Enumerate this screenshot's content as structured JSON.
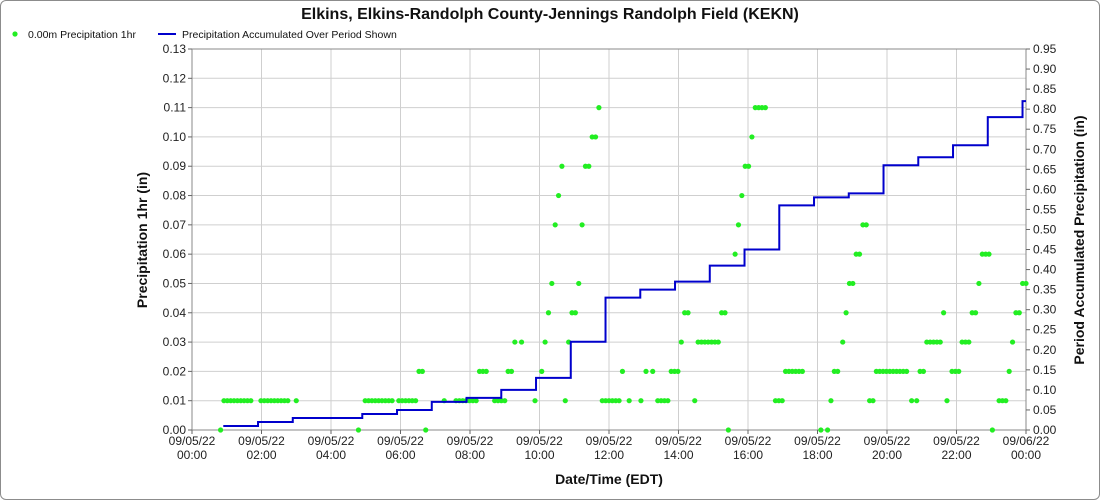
{
  "chart_data": {
    "type": "scatter",
    "title": "Elkins, Elkins-Randolph County-Jennings Randolph Field (KEKN)",
    "xlabel": "Date/Time (EDT)",
    "ylabel_left": "Precipitation 1hr (in)",
    "ylabel_right": "Period Accumulated Precipitation (in)",
    "xlim": [
      "09/05/22 00:00",
      "09/06/22 00:00"
    ],
    "ylim_left": [
      0,
      0.13
    ],
    "ylim_right": [
      0,
      0.95
    ],
    "grid": true,
    "legend_placement": "top-left",
    "x_ticks": [
      {
        "date": "09/05/22",
        "time": "00:00"
      },
      {
        "date": "09/05/22",
        "time": "02:00"
      },
      {
        "date": "09/05/22",
        "time": "04:00"
      },
      {
        "date": "09/05/22",
        "time": "06:00"
      },
      {
        "date": "09/05/22",
        "time": "08:00"
      },
      {
        "date": "09/05/22",
        "time": "10:00"
      },
      {
        "date": "09/05/22",
        "time": "12:00"
      },
      {
        "date": "09/05/22",
        "time": "14:00"
      },
      {
        "date": "09/05/22",
        "time": "16:00"
      },
      {
        "date": "09/05/22",
        "time": "18:00"
      },
      {
        "date": "09/05/22",
        "time": "20:00"
      },
      {
        "date": "09/05/22",
        "time": "22:00"
      },
      {
        "date": "09/06/22",
        "time": "00:00"
      }
    ],
    "y_ticks_left": [
      "0.00",
      "0.01",
      "0.02",
      "0.03",
      "0.04",
      "0.05",
      "0.06",
      "0.07",
      "0.08",
      "0.09",
      "0.10",
      "0.11",
      "0.12",
      "0.13"
    ],
    "y_ticks_right": [
      "0.00",
      "0.05",
      "0.10",
      "0.15",
      "0.20",
      "0.25",
      "0.30",
      "0.35",
      "0.40",
      "0.45",
      "0.50",
      "0.55",
      "0.60",
      "0.65",
      "0.70",
      "0.75",
      "0.80",
      "0.85",
      "0.90",
      "0.95"
    ],
    "series": [
      {
        "name": "0.00m Precipitation 1hr",
        "kind": "scatter",
        "color": "#22ee22",
        "axis": "left",
        "x_unit": "hours since 09/05/22 00:00",
        "points": [
          [
            0.85,
            0.0
          ],
          [
            0.95,
            0.01
          ],
          [
            1.05,
            0.01
          ],
          [
            1.15,
            0.01
          ],
          [
            1.25,
            0.01
          ],
          [
            1.35,
            0.01
          ],
          [
            1.45,
            0.01
          ],
          [
            1.55,
            0.01
          ],
          [
            1.65,
            0.01
          ],
          [
            1.75,
            0.01
          ],
          [
            2.05,
            0.01
          ],
          [
            2.15,
            0.01
          ],
          [
            2.25,
            0.01
          ],
          [
            2.35,
            0.01
          ],
          [
            2.45,
            0.01
          ],
          [
            2.55,
            0.01
          ],
          [
            2.65,
            0.01
          ],
          [
            2.75,
            0.01
          ],
          [
            2.85,
            0.01
          ],
          [
            3.1,
            0.01
          ],
          [
            4.95,
            0.0
          ],
          [
            5.15,
            0.01
          ],
          [
            5.25,
            0.01
          ],
          [
            5.35,
            0.01
          ],
          [
            5.45,
            0.01
          ],
          [
            5.55,
            0.01
          ],
          [
            5.65,
            0.01
          ],
          [
            5.75,
            0.01
          ],
          [
            5.85,
            0.01
          ],
          [
            5.95,
            0.01
          ],
          [
            6.15,
            0.01
          ],
          [
            6.25,
            0.01
          ],
          [
            6.35,
            0.01
          ],
          [
            6.45,
            0.01
          ],
          [
            6.55,
            0.01
          ],
          [
            6.65,
            0.01
          ],
          [
            6.75,
            0.02
          ],
          [
            6.85,
            0.02
          ],
          [
            6.95,
            0.0
          ],
          [
            7.5,
            0.01
          ],
          [
            7.85,
            0.01
          ],
          [
            7.95,
            0.01
          ],
          [
            8.05,
            0.01
          ],
          [
            8.15,
            0.01
          ],
          [
            8.25,
            0.01
          ],
          [
            8.35,
            0.01
          ],
          [
            8.45,
            0.01
          ],
          [
            8.55,
            0.02
          ],
          [
            8.65,
            0.02
          ],
          [
            8.75,
            0.02
          ],
          [
            9.0,
            0.01
          ],
          [
            9.1,
            0.01
          ],
          [
            9.2,
            0.01
          ],
          [
            9.3,
            0.01
          ],
          [
            9.4,
            0.02
          ],
          [
            9.5,
            0.02
          ],
          [
            9.6,
            0.03
          ],
          [
            9.8,
            0.03
          ],
          [
            10.2,
            0.01
          ],
          [
            10.4,
            0.02
          ],
          [
            10.5,
            0.03
          ],
          [
            10.6,
            0.04
          ],
          [
            10.7,
            0.05
          ],
          [
            10.8,
            0.07
          ],
          [
            10.9,
            0.08
          ],
          [
            11.0,
            0.09
          ],
          [
            11.1,
            0.01
          ],
          [
            11.2,
            0.03
          ],
          [
            11.3,
            0.04
          ],
          [
            11.4,
            0.04
          ],
          [
            11.5,
            0.05
          ],
          [
            11.6,
            0.07
          ],
          [
            11.7,
            0.09
          ],
          [
            11.8,
            0.09
          ],
          [
            11.9,
            0.1
          ],
          [
            12.0,
            0.1
          ],
          [
            12.1,
            0.11
          ],
          [
            12.2,
            0.01
          ],
          [
            12.3,
            0.01
          ],
          [
            12.4,
            0.01
          ],
          [
            12.5,
            0.01
          ],
          [
            12.6,
            0.01
          ],
          [
            12.7,
            0.01
          ],
          [
            12.8,
            0.02
          ],
          [
            13.0,
            0.01
          ],
          [
            13.35,
            0.01
          ],
          [
            13.5,
            0.02
          ],
          [
            13.7,
            0.02
          ],
          [
            13.85,
            0.01
          ],
          [
            13.95,
            0.01
          ],
          [
            14.05,
            0.01
          ],
          [
            14.15,
            0.01
          ],
          [
            14.25,
            0.02
          ],
          [
            14.35,
            0.02
          ],
          [
            14.45,
            0.02
          ],
          [
            14.55,
            0.03
          ],
          [
            14.65,
            0.04
          ],
          [
            14.75,
            0.04
          ],
          [
            14.95,
            0.01
          ],
          [
            15.05,
            0.03
          ],
          [
            15.15,
            0.03
          ],
          [
            15.25,
            0.03
          ],
          [
            15.35,
            0.03
          ],
          [
            15.45,
            0.03
          ],
          [
            15.55,
            0.03
          ],
          [
            15.65,
            0.03
          ],
          [
            15.75,
            0.04
          ],
          [
            15.85,
            0.04
          ],
          [
            15.95,
            0.0
          ],
          [
            16.15,
            0.06
          ],
          [
            16.25,
            0.07
          ],
          [
            16.35,
            0.08
          ],
          [
            16.45,
            0.09
          ],
          [
            16.55,
            0.09
          ],
          [
            16.65,
            0.1
          ],
          [
            16.75,
            0.11
          ],
          [
            16.85,
            0.11
          ],
          [
            16.95,
            0.11
          ],
          [
            17.05,
            0.11
          ],
          [
            17.35,
            0.01
          ],
          [
            17.45,
            0.01
          ],
          [
            17.55,
            0.01
          ],
          [
            17.65,
            0.02
          ],
          [
            17.75,
            0.02
          ],
          [
            17.85,
            0.02
          ],
          [
            17.95,
            0.02
          ],
          [
            18.05,
            0.02
          ],
          [
            18.15,
            0.02
          ],
          [
            18.7,
            0.0
          ],
          [
            18.9,
            0.0
          ],
          [
            19.0,
            0.01
          ],
          [
            19.1,
            0.02
          ],
          [
            19.2,
            0.02
          ],
          [
            19.35,
            0.03
          ],
          [
            19.45,
            0.04
          ],
          [
            19.55,
            0.05
          ],
          [
            19.65,
            0.05
          ],
          [
            19.75,
            0.06
          ],
          [
            19.85,
            0.06
          ],
          [
            19.95,
            0.07
          ],
          [
            20.05,
            0.07
          ],
          [
            20.15,
            0.01
          ],
          [
            20.25,
            0.01
          ],
          [
            20.35,
            0.02
          ],
          [
            20.45,
            0.02
          ],
          [
            20.55,
            0.02
          ],
          [
            20.65,
            0.02
          ],
          [
            20.75,
            0.02
          ],
          [
            20.85,
            0.02
          ],
          [
            20.95,
            0.02
          ],
          [
            21.05,
            0.02
          ],
          [
            21.15,
            0.02
          ],
          [
            21.25,
            0.02
          ],
          [
            21.4,
            0.01
          ],
          [
            21.55,
            0.01
          ],
          [
            21.65,
            0.02
          ],
          [
            21.75,
            0.02
          ],
          [
            21.85,
            0.03
          ],
          [
            21.95,
            0.03
          ],
          [
            22.05,
            0.03
          ],
          [
            22.15,
            0.03
          ],
          [
            22.25,
            0.03
          ],
          [
            22.35,
            0.04
          ],
          [
            22.45,
            0.01
          ],
          [
            22.6,
            0.02
          ],
          [
            22.7,
            0.02
          ],
          [
            22.8,
            0.02
          ],
          [
            22.9,
            0.03
          ],
          [
            23.0,
            0.03
          ],
          [
            23.1,
            0.03
          ],
          [
            23.2,
            0.04
          ],
          [
            23.3,
            0.04
          ],
          [
            23.4,
            0.05
          ],
          [
            23.5,
            0.06
          ],
          [
            23.6,
            0.06
          ],
          [
            23.7,
            0.06
          ],
          [
            23.8,
            0.0
          ],
          [
            24.0,
            0.01
          ],
          [
            24.1,
            0.01
          ],
          [
            24.2,
            0.01
          ],
          [
            24.3,
            0.02
          ],
          [
            24.4,
            0.03
          ],
          [
            24.5,
            0.04
          ],
          [
            24.6,
            0.04
          ],
          [
            24.7,
            0.05
          ],
          [
            24.8,
            0.05
          ]
        ]
      },
      {
        "name": "Precipitation Accumulated Over Period Shown",
        "kind": "step-line",
        "color": "#0000cc",
        "axis": "right",
        "x_unit": "hours since 09/05/22 00:00",
        "points": [
          [
            0.9,
            0.01
          ],
          [
            1.1,
            0.01
          ],
          [
            1.9,
            0.02
          ],
          [
            2.1,
            0.02
          ],
          [
            2.9,
            0.03
          ],
          [
            3.1,
            0.03
          ],
          [
            4.9,
            0.04
          ],
          [
            5.1,
            0.04
          ],
          [
            5.9,
            0.05
          ],
          [
            6.1,
            0.05
          ],
          [
            6.9,
            0.07
          ],
          [
            7.1,
            0.07
          ],
          [
            7.9,
            0.08
          ],
          [
            8.1,
            0.08
          ],
          [
            8.9,
            0.1
          ],
          [
            9.1,
            0.1
          ],
          [
            9.9,
            0.13
          ],
          [
            10.1,
            0.13
          ],
          [
            10.9,
            0.22
          ],
          [
            11.1,
            0.22
          ],
          [
            11.9,
            0.33
          ],
          [
            12.1,
            0.33
          ],
          [
            12.9,
            0.35
          ],
          [
            13.1,
            0.35
          ],
          [
            13.9,
            0.37
          ],
          [
            14.1,
            0.37
          ],
          [
            14.9,
            0.41
          ],
          [
            15.1,
            0.41
          ],
          [
            15.9,
            0.45
          ],
          [
            16.1,
            0.45
          ],
          [
            16.9,
            0.56
          ],
          [
            17.1,
            0.56
          ],
          [
            17.9,
            0.58
          ],
          [
            18.1,
            0.58
          ],
          [
            18.9,
            0.59
          ],
          [
            19.1,
            0.59
          ],
          [
            19.9,
            0.66
          ],
          [
            20.1,
            0.66
          ],
          [
            20.9,
            0.68
          ],
          [
            21.1,
            0.68
          ],
          [
            21.9,
            0.71
          ],
          [
            22.1,
            0.71
          ],
          [
            22.9,
            0.78
          ],
          [
            23.1,
            0.78
          ],
          [
            23.9,
            0.82
          ],
          [
            24.0,
            0.82
          ]
        ]
      }
    ]
  }
}
